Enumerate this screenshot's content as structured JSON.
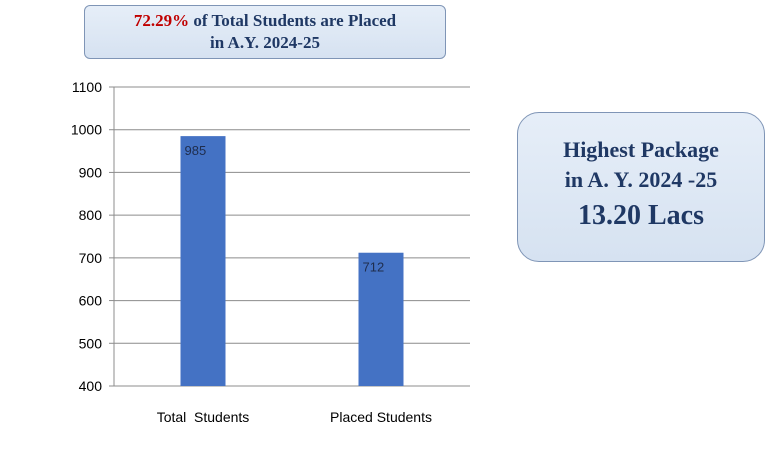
{
  "headline": {
    "percent": "72.29%",
    "text_rest": " of Total Students are Placed",
    "line2": "in A.Y. 2024-25"
  },
  "package_box": {
    "line1": "Highest Package",
    "line2": "in A. Y. 2024 -25",
    "value": "13.20 Lacs"
  },
  "colors": {
    "bar": "#4472c4",
    "callout_text": "#1f3864",
    "highlight": "#c00000",
    "grid": "#8c8c8c"
  },
  "chart_data": {
    "type": "bar",
    "categories": [
      "Total  Students",
      "Placed Students"
    ],
    "values": [
      985,
      712
    ],
    "data_labels": [
      "985",
      "712"
    ],
    "title": "",
    "xlabel": "",
    "ylabel": "",
    "ylim": [
      400,
      1100
    ],
    "yticks": [
      400,
      500,
      600,
      700,
      800,
      900,
      1000,
      1100
    ],
    "grid": true,
    "legend": "none"
  }
}
